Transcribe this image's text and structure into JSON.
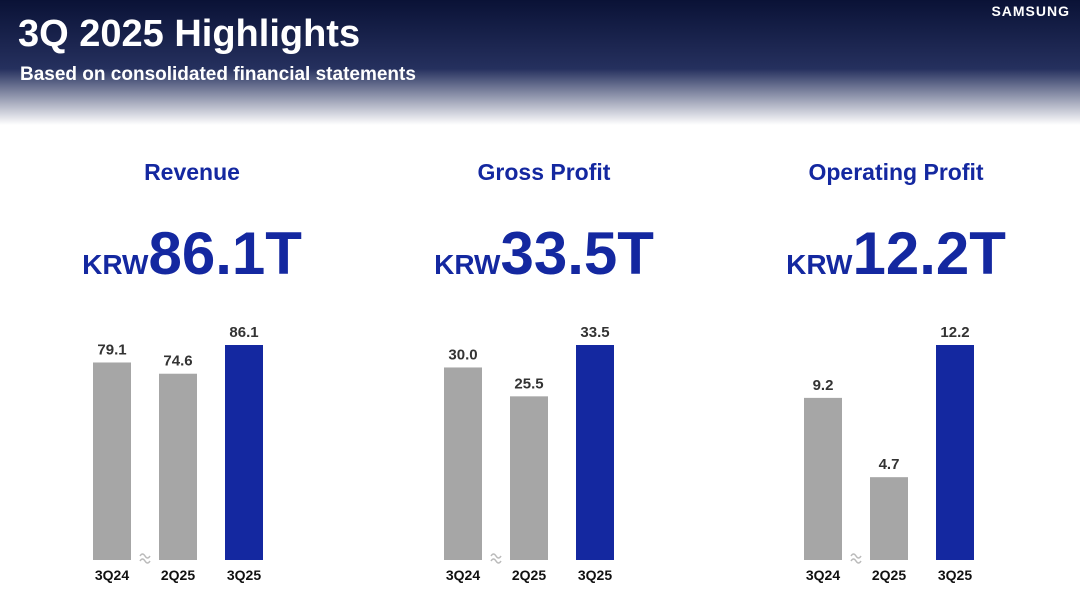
{
  "header": {
    "title": "3Q 2025 Highlights",
    "subtitle": "Based on consolidated financial statements",
    "brand": "SAMSUNG"
  },
  "chart_data": [
    {
      "type": "bar",
      "title": "Revenue",
      "unit": "KRW",
      "headline": "86.1T",
      "categories": [
        "3Q24",
        "2Q25",
        "3Q25"
      ],
      "values": [
        79.1,
        74.6,
        86.1
      ],
      "colors": [
        "#a6a6a6",
        "#a6a6a6",
        "#1428a0"
      ]
    },
    {
      "type": "bar",
      "title": "Gross Profit",
      "unit": "KRW",
      "headline": "33.5T",
      "categories": [
        "3Q24",
        "2Q25",
        "3Q25"
      ],
      "values": [
        30,
        25.5,
        33.5
      ],
      "value_labels": [
        "30.0",
        "25.5",
        "33.5"
      ],
      "colors": [
        "#a6a6a6",
        "#a6a6a6",
        "#1428a0"
      ]
    },
    {
      "type": "bar",
      "title": "Operating  Profit",
      "unit": "KRW",
      "headline": "12.2T",
      "categories": [
        "3Q24",
        "2Q25",
        "3Q25"
      ],
      "values": [
        9.2,
        4.7,
        12.2
      ],
      "colors": [
        "#a6a6a6",
        "#a6a6a6",
        "#1428a0"
      ]
    }
  ]
}
